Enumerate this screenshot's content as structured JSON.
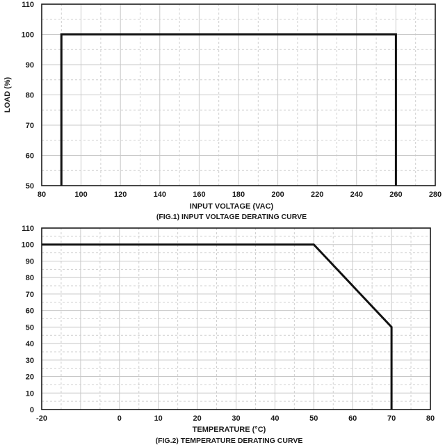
{
  "chart_data": [
    {
      "type": "line",
      "title": "(FIG.1) INPUT VOLTAGE DERATING CURVE",
      "xlabel": "INPUT VOLTAGE (VAC)",
      "ylabel": "LOAD (%)",
      "xlim": [
        80,
        280
      ],
      "ylim": [
        50,
        110
      ],
      "x_ticks": [
        "80",
        "100",
        "120",
        "140",
        "160",
        "180",
        "200",
        "220",
        "240",
        "260",
        "280"
      ],
      "y_ticks": [
        "50",
        "60",
        "70",
        "80",
        "90",
        "100",
        "110"
      ],
      "grid": true,
      "series": [
        {
          "x": [
            90,
            90,
            260,
            260
          ],
          "y": [
            50,
            100,
            100,
            50
          ]
        }
      ]
    },
    {
      "type": "line",
      "title": "(FIG.2) TEMPERATURE DERATING CURVE",
      "xlabel": "TEMPERATURE (°C)",
      "ylabel": "",
      "xlim": [
        -20,
        80
      ],
      "ylim": [
        0,
        110
      ],
      "x_ticks": [
        "-20",
        "0",
        "10",
        "20",
        "30",
        "40",
        "50",
        "60",
        "70",
        "80"
      ],
      "y_ticks": [
        "0",
        "10",
        "20",
        "30",
        "40",
        "50",
        "60",
        "70",
        "80",
        "90",
        "100",
        "110"
      ],
      "grid": true,
      "series": [
        {
          "x": [
            -20,
            50,
            70,
            70
          ],
          "y": [
            100,
            100,
            50,
            0
          ]
        }
      ]
    }
  ]
}
